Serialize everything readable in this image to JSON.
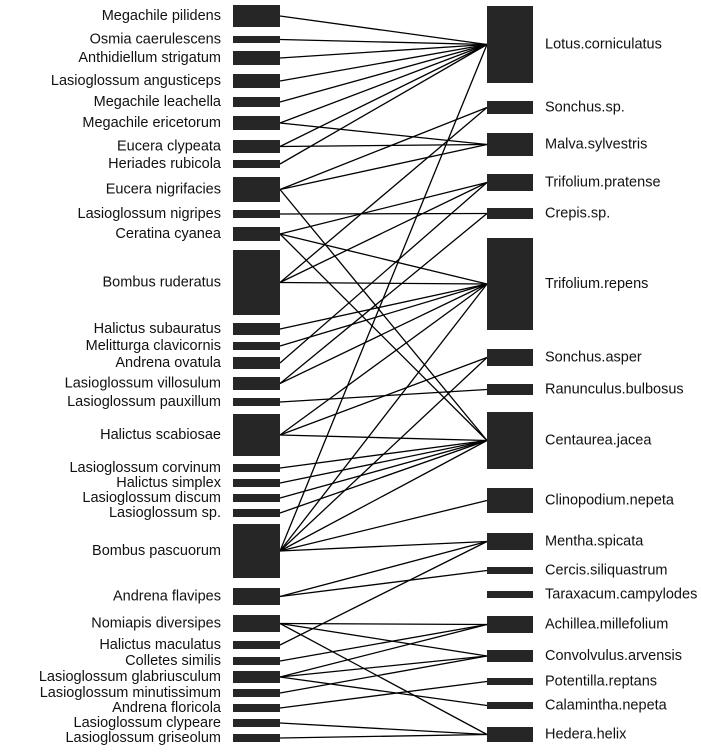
{
  "pollinators": [
    "Megachile pilidens",
    "Osmia caerulescens",
    "Anthidiellum strigatum",
    "Lasioglossum angusticeps",
    "Megachile leachella",
    "Megachile ericetorum",
    "Eucera clypeata",
    "Heriades rubicola",
    "Eucera nigrifacies",
    "Lasioglossum nigripes",
    "Ceratina cyanea",
    "Bombus ruderatus",
    "Halictus subauratus",
    "Melitturga clavicornis",
    "Andrena ovatula",
    "Lasioglossum villosulum",
    "Lasioglossum pauxillum",
    "Halictus scabiosae",
    "Lasioglossum corvinum",
    "Halictus simplex",
    "Lasioglossum discum",
    "Lasioglossum sp.",
    "Bombus pascuorum",
    "Andrena flavipes",
    "Nomiapis diversipes",
    "Halictus maculatus",
    "Colletes similis",
    "Lasioglossum glabriusculum",
    "Lasioglossum minutissimum",
    "Andrena floricola",
    "Lasioglossum clypeare",
    "Lasioglossum griseolum"
  ],
  "plants": [
    "Lotus.corniculatus",
    "Sonchus.sp.",
    "Malva.sylvestris",
    "Trifolium.pratense",
    "Crepis.sp.",
    "Trifolium.repens",
    "Sonchus.asper",
    "Ranunculus.bulbosus",
    "Centaurea.jacea",
    "Clinopodium.nepeta",
    "Mentha.spicata",
    "Cercis.siliquastrum",
    "Taraxacum.campylodes",
    "Achillea.millefolium",
    "Convolvulus.arvensis",
    "Potentilla.reptans",
    "Calamintha.nepeta",
    "Hedera.helix"
  ],
  "links": [
    [
      0,
      0
    ],
    [
      1,
      0
    ],
    [
      2,
      0
    ],
    [
      3,
      0
    ],
    [
      4,
      0
    ],
    [
      5,
      0
    ],
    [
      5,
      2
    ],
    [
      6,
      0
    ],
    [
      6,
      2
    ],
    [
      7,
      0
    ],
    [
      8,
      1
    ],
    [
      8,
      2
    ],
    [
      8,
      8
    ],
    [
      9,
      4
    ],
    [
      10,
      3
    ],
    [
      10,
      5
    ],
    [
      10,
      8
    ],
    [
      11,
      1
    ],
    [
      11,
      3
    ],
    [
      11,
      5
    ],
    [
      12,
      5
    ],
    [
      13,
      5
    ],
    [
      14,
      3
    ],
    [
      15,
      4
    ],
    [
      15,
      5
    ],
    [
      16,
      7
    ],
    [
      17,
      5
    ],
    [
      17,
      6
    ],
    [
      17,
      8
    ],
    [
      18,
      8
    ],
    [
      19,
      8
    ],
    [
      20,
      8
    ],
    [
      21,
      8
    ],
    [
      22,
      0
    ],
    [
      22,
      5
    ],
    [
      22,
      6
    ],
    [
      22,
      8
    ],
    [
      22,
      9
    ],
    [
      22,
      10
    ],
    [
      23,
      10
    ],
    [
      23,
      11
    ],
    [
      24,
      13
    ],
    [
      24,
      14
    ],
    [
      24,
      17
    ],
    [
      25,
      10
    ],
    [
      26,
      13
    ],
    [
      27,
      13
    ],
    [
      27,
      14
    ],
    [
      27,
      16
    ],
    [
      28,
      14
    ],
    [
      29,
      15
    ],
    [
      30,
      17
    ],
    [
      31,
      17
    ]
  ]
}
